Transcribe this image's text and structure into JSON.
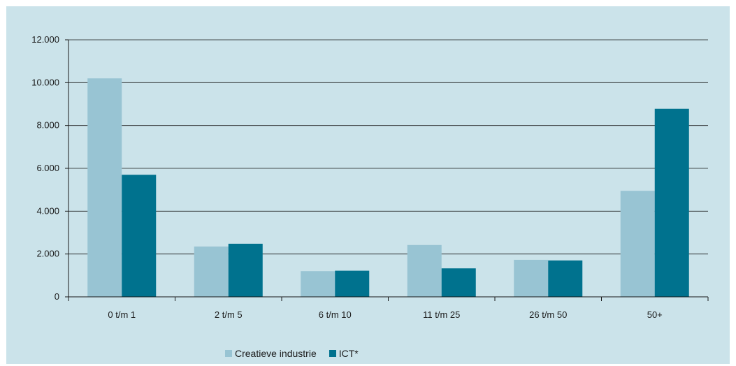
{
  "chart_data": {
    "type": "bar",
    "title": "",
    "xlabel": "",
    "ylabel": "",
    "categories": [
      "0 t/m 1",
      "2 t/m 5",
      "6 t/m 10",
      "11 t/m 25",
      "26 t/m 50",
      "50+"
    ],
    "series": [
      {
        "name": "Creatieve industrie",
        "color": "#98c4d3",
        "values": [
          10200,
          2350,
          1200,
          2420,
          1730,
          4950
        ]
      },
      {
        "name": "ICT*",
        "color": "#00728e",
        "values": [
          5700,
          2480,
          1220,
          1330,
          1700,
          8780
        ]
      }
    ],
    "ylim": [
      0,
      12000
    ],
    "yticks": [
      0,
      2000,
      4000,
      6000,
      8000,
      10000,
      12000
    ],
    "ytick_labels": [
      "0",
      "2.000",
      "4.000",
      "6.000",
      "8.000",
      "10.000",
      "12.000"
    ],
    "grid": true,
    "legend_position": "bottom"
  },
  "colors": {
    "background": "#cbe3ea",
    "gridline": "#1a1a1a"
  }
}
